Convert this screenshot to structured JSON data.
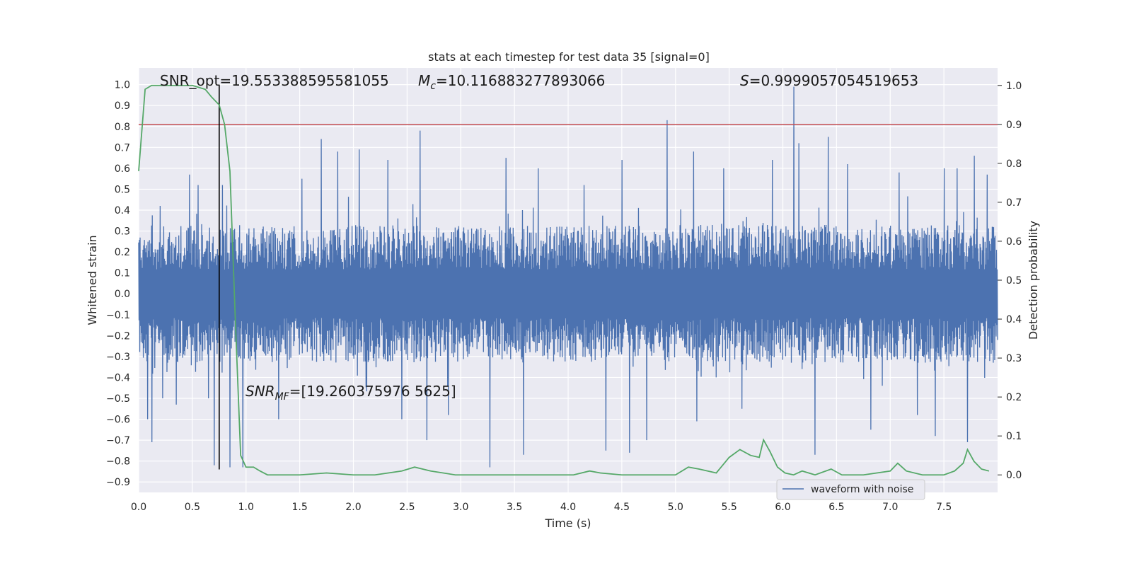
{
  "chart_data": {
    "type": "line",
    "title": "stats at each timestep for test data 35 [signal=0]",
    "xlabel": "Time (s)",
    "ylabel_left": "Whitened strain",
    "ylabel_right": "Detection probability",
    "xlim": [
      0.0,
      8.0
    ],
    "ylim_left": [
      -0.95,
      1.08
    ],
    "ylim_right": [
      -0.045,
      1.045
    ],
    "x_ticks": [
      "0.0",
      "0.5",
      "1.0",
      "1.5",
      "2.0",
      "2.5",
      "3.0",
      "3.5",
      "4.0",
      "4.5",
      "5.0",
      "5.5",
      "6.0",
      "6.5",
      "7.0",
      "7.5"
    ],
    "y_left_ticks": [
      "-0.9",
      "-0.8",
      "-0.7",
      "-0.6",
      "-0.5",
      "-0.4",
      "-0.3",
      "-0.2",
      "-0.1",
      "0.0",
      "0.1",
      "0.2",
      "0.3",
      "0.4",
      "0.5",
      "0.6",
      "0.7",
      "0.8",
      "0.9",
      "1.0"
    ],
    "y_right_ticks": [
      "0.0",
      "0.1",
      "0.2",
      "0.3",
      "0.4",
      "0.5",
      "0.6",
      "0.7",
      "0.8",
      "0.9",
      "1.0"
    ],
    "grid": true,
    "legend_position": "lower-right",
    "annotations": {
      "snr_opt": "SNR_opt=19.553388595581055",
      "mc_symbol": "M",
      "mc_sub": "c",
      "mc_value": "=10.116883277893066",
      "s_symbol": "S",
      "s_value": "=0.9999057054519653",
      "snr_mf_symbol": "SNR",
      "snr_mf_sub": "MF",
      "snr_mf_value": "=[19.260375976 5625]"
    },
    "threshold_line": {
      "y": 0.9,
      "axis": "right",
      "color": "#c44e52"
    },
    "vertical_line": {
      "x": 0.75,
      "color": "#000000"
    },
    "series": [
      {
        "name": "waveform with noise",
        "axis": "left",
        "color": "#4c72b0",
        "typical_envelope": 0.33,
        "spikes": [
          {
            "x": 0.08,
            "y": -0.6
          },
          {
            "x": 0.12,
            "y": -0.71
          },
          {
            "x": 0.22,
            "y": -0.5
          },
          {
            "x": 0.35,
            "y": -0.53
          },
          {
            "x": 0.47,
            "y": 0.57
          },
          {
            "x": 0.55,
            "y": 0.52
          },
          {
            "x": 0.65,
            "y": -0.5
          },
          {
            "x": 0.7,
            "y": -0.82
          },
          {
            "x": 0.78,
            "y": 0.52
          },
          {
            "x": 0.85,
            "y": -0.83
          },
          {
            "x": 0.97,
            "y": -0.83
          },
          {
            "x": 1.3,
            "y": -0.6
          },
          {
            "x": 1.52,
            "y": 0.55
          },
          {
            "x": 1.7,
            "y": 0.74
          },
          {
            "x": 1.85,
            "y": 0.68
          },
          {
            "x": 2.05,
            "y": 0.69
          },
          {
            "x": 2.32,
            "y": 0.64
          },
          {
            "x": 2.45,
            "y": -0.6
          },
          {
            "x": 2.62,
            "y": 0.78
          },
          {
            "x": 2.68,
            "y": -0.7
          },
          {
            "x": 2.88,
            "y": -0.58
          },
          {
            "x": 3.27,
            "y": -0.83
          },
          {
            "x": 3.42,
            "y": 0.65
          },
          {
            "x": 3.58,
            "y": -0.77
          },
          {
            "x": 3.72,
            "y": 0.6
          },
          {
            "x": 4.15,
            "y": 0.52
          },
          {
            "x": 4.35,
            "y": -0.75
          },
          {
            "x": 4.5,
            "y": 0.64
          },
          {
            "x": 4.57,
            "y": -0.76
          },
          {
            "x": 4.73,
            "y": -0.7
          },
          {
            "x": 4.92,
            "y": 0.83
          },
          {
            "x": 5.17,
            "y": 0.68
          },
          {
            "x": 5.2,
            "y": -0.61
          },
          {
            "x": 5.45,
            "y": 0.6
          },
          {
            "x": 5.62,
            "y": -0.55
          },
          {
            "x": 5.9,
            "y": 0.64
          },
          {
            "x": 6.1,
            "y": 0.99
          },
          {
            "x": 6.15,
            "y": 0.72
          },
          {
            "x": 6.3,
            "y": -0.77
          },
          {
            "x": 6.42,
            "y": 0.75
          },
          {
            "x": 6.6,
            "y": 0.62
          },
          {
            "x": 6.82,
            "y": -0.65
          },
          {
            "x": 7.08,
            "y": 0.58
          },
          {
            "x": 7.25,
            "y": -0.58
          },
          {
            "x": 7.42,
            "y": -0.68
          },
          {
            "x": 7.5,
            "y": 0.6
          },
          {
            "x": 7.62,
            "y": 0.6
          },
          {
            "x": 7.72,
            "y": -0.71
          },
          {
            "x": 7.78,
            "y": 0.66
          },
          {
            "x": 7.9,
            "y": 0.57
          }
        ]
      },
      {
        "name": "",
        "axis": "right",
        "color": "#55a868",
        "x": [
          0.0,
          0.06,
          0.12,
          0.2,
          0.35,
          0.5,
          0.62,
          0.68,
          0.75,
          0.8,
          0.85,
          0.9,
          0.95,
          1.0,
          1.07,
          1.13,
          1.2,
          1.5,
          1.75,
          2.0,
          2.2,
          2.45,
          2.57,
          2.72,
          2.95,
          3.25,
          3.5,
          3.8,
          4.05,
          4.2,
          4.3,
          4.5,
          5.0,
          5.12,
          5.22,
          5.38,
          5.5,
          5.6,
          5.7,
          5.78,
          5.82,
          5.88,
          5.95,
          6.02,
          6.1,
          6.18,
          6.3,
          6.45,
          6.55,
          6.75,
          7.0,
          7.07,
          7.15,
          7.3,
          7.5,
          7.6,
          7.68,
          7.72,
          7.78,
          7.85,
          7.92
        ],
        "y": [
          0.78,
          0.99,
          1.0,
          1.0,
          1.0,
          1.0,
          0.99,
          0.97,
          0.95,
          0.9,
          0.78,
          0.4,
          0.05,
          0.02,
          0.02,
          0.01,
          0.0,
          0.0,
          0.005,
          0.0,
          0.0,
          0.01,
          0.02,
          0.01,
          0.0,
          0.0,
          0.0,
          0.0,
          0.0,
          0.01,
          0.005,
          0.0,
          0.0,
          0.02,
          0.015,
          0.005,
          0.045,
          0.065,
          0.05,
          0.045,
          0.09,
          0.06,
          0.02,
          0.005,
          0.0,
          0.01,
          0.0,
          0.015,
          0.0,
          0.0,
          0.01,
          0.03,
          0.01,
          0.0,
          0.0,
          0.01,
          0.03,
          0.065,
          0.035,
          0.015,
          0.01
        ]
      }
    ]
  }
}
